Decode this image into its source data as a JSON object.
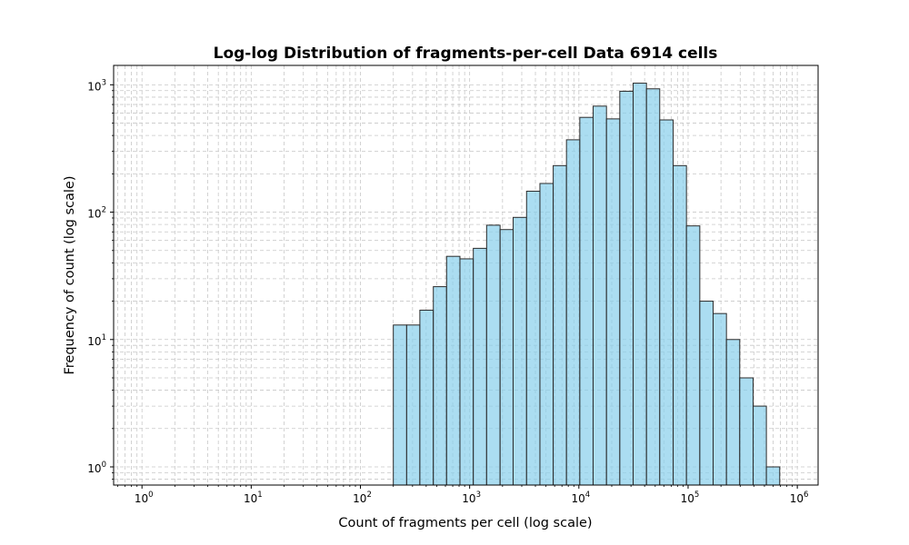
{
  "chart_data": {
    "type": "bar",
    "title": "Log-log Distribution of fragments-per-cell Data 6914 cells",
    "xlabel": "Count of fragments per cell (log scale)",
    "ylabel": "Frequency of count (log scale)",
    "x_scale": "log",
    "y_scale": "log",
    "xlim": [
      0.55,
      1550000
    ],
    "ylim": [
      0.72,
      1420
    ],
    "grid": true,
    "x_ticks": [
      {
        "base": "10",
        "exp": "0",
        "value": 1
      },
      {
        "base": "10",
        "exp": "1",
        "value": 10
      },
      {
        "base": "10",
        "exp": "2",
        "value": 100
      },
      {
        "base": "10",
        "exp": "3",
        "value": 1000
      },
      {
        "base": "10",
        "exp": "4",
        "value": 10000
      },
      {
        "base": "10",
        "exp": "5",
        "value": 100000
      },
      {
        "base": "10",
        "exp": "6",
        "value": 1000000
      }
    ],
    "y_ticks": [
      {
        "base": "10",
        "exp": "0",
        "value": 1
      },
      {
        "base": "10",
        "exp": "1",
        "value": 10
      },
      {
        "base": "10",
        "exp": "2",
        "value": 100
      },
      {
        "base": "10",
        "exp": "3",
        "value": 1000
      }
    ],
    "bin_edges": [
      200,
      265,
      350,
      465,
      615,
      815,
      1080,
      1430,
      1900,
      2500,
      3320,
      4400,
      5820,
      7700,
      10200,
      13500,
      17900,
      23700,
      31400,
      41600,
      55000,
      73000,
      96600,
      128000,
      169500,
      224500,
      297000,
      394000,
      521000,
      690000
    ],
    "values": [
      13,
      13,
      17,
      26,
      45,
      43,
      52,
      79,
      73,
      91,
      146,
      168,
      232,
      370,
      555,
      680,
      540,
      890,
      1030,
      930,
      530,
      232,
      78,
      20,
      16,
      10,
      5,
      3,
      1
    ],
    "colors": {
      "bar_fill": "#87ceeb",
      "bar_stroke": "#2b2b2b",
      "grid": "#c8c8c8"
    }
  }
}
